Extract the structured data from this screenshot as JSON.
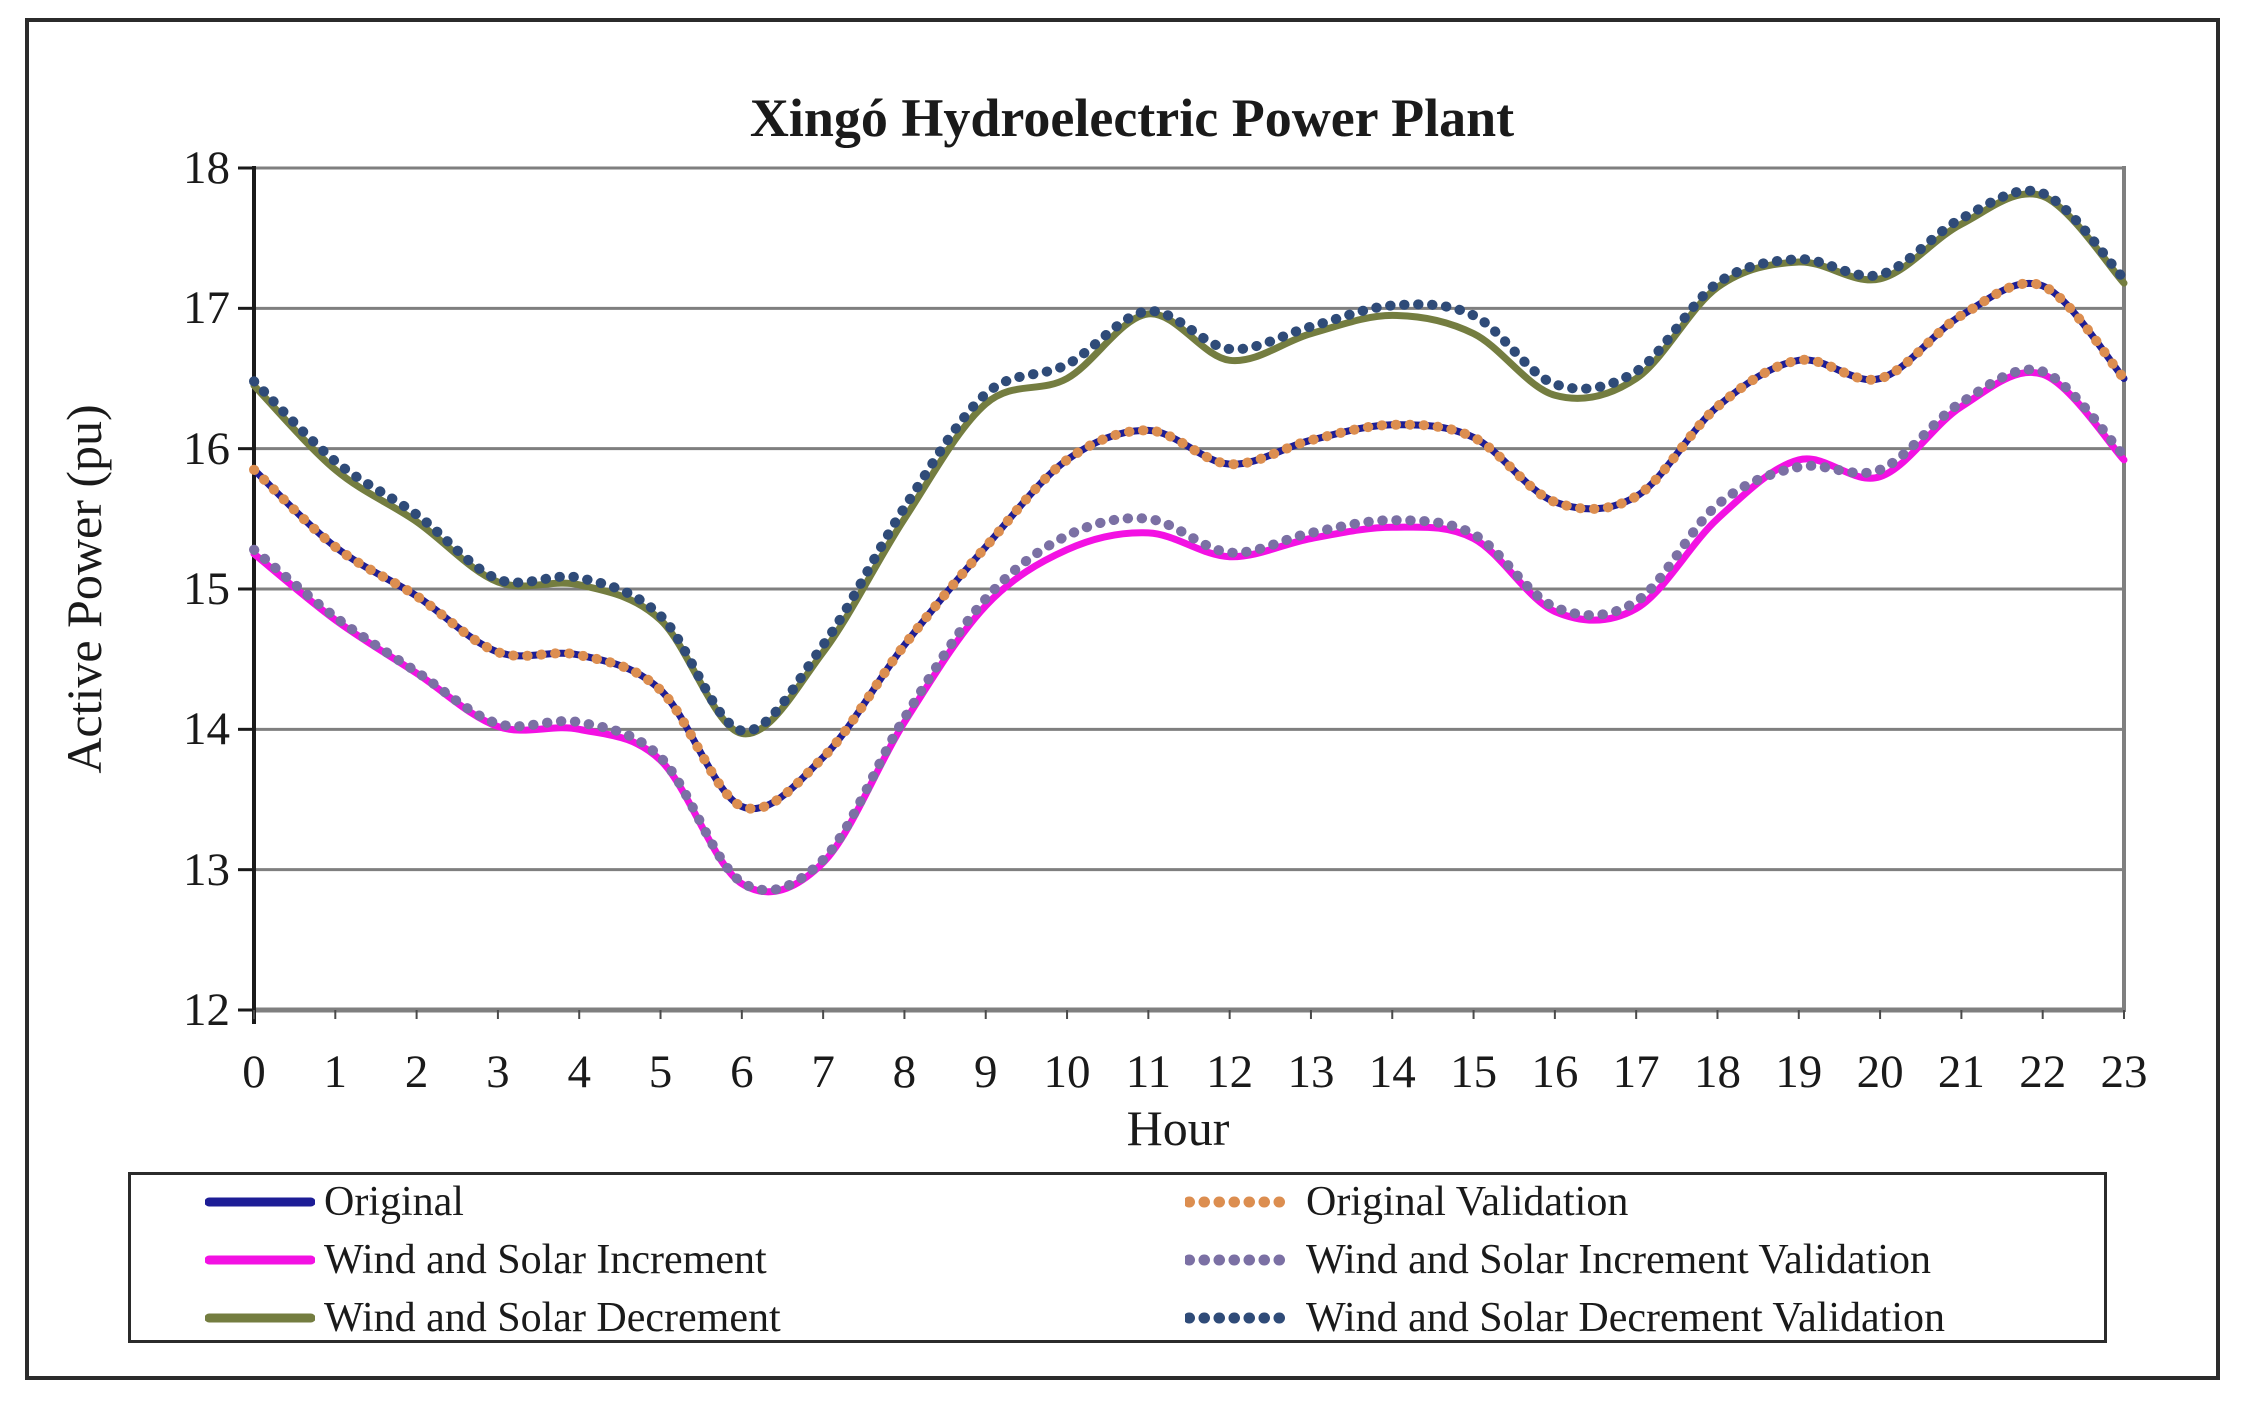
{
  "figure": {
    "background": "#ffffff",
    "border_color": "#2b2b2b"
  },
  "chart_data": {
    "type": "line",
    "title": "Xingó Hydroelectric Power Plant",
    "xlabel": "Hour",
    "ylabel": "Active Power (pu)",
    "x": [
      0,
      1,
      2,
      3,
      4,
      5,
      6,
      7,
      8,
      9,
      10,
      11,
      12,
      13,
      14,
      15,
      16,
      17,
      18,
      19,
      20,
      21,
      22,
      23
    ],
    "xlim": [
      0,
      23
    ],
    "ylim": [
      12,
      18
    ],
    "yticks": [
      12,
      13,
      14,
      15,
      16,
      17,
      18
    ],
    "grid": true,
    "gridline_color": "#7f7f7f",
    "axis_color": "#1a1a1a",
    "legend_position": "bottom",
    "series": [
      {
        "name": "Original",
        "style": "solid",
        "color": "#1d1d96",
        "values": [
          15.85,
          15.3,
          14.95,
          14.55,
          14.53,
          14.28,
          13.45,
          13.8,
          14.6,
          15.3,
          15.92,
          16.13,
          15.89,
          16.06,
          16.17,
          16.08,
          15.62,
          15.66,
          16.3,
          16.63,
          16.5,
          16.95,
          17.16,
          16.5
        ]
      },
      {
        "name": "Original Validation",
        "style": "dotted",
        "color": "#dc8e50",
        "values": [
          15.85,
          15.3,
          14.95,
          14.55,
          14.53,
          14.28,
          13.45,
          13.8,
          14.6,
          15.3,
          15.92,
          16.13,
          15.89,
          16.06,
          16.17,
          16.08,
          15.62,
          15.66,
          16.3,
          16.63,
          16.5,
          16.95,
          17.16,
          16.5
        ]
      },
      {
        "name": "Wind and Solar Increment",
        "style": "solid",
        "color": "#f311e3",
        "values": [
          15.25,
          14.78,
          14.4,
          14.02,
          14.0,
          13.78,
          12.9,
          13.05,
          14.05,
          14.88,
          15.28,
          15.4,
          15.23,
          15.36,
          15.44,
          15.36,
          14.84,
          14.86,
          15.5,
          15.92,
          15.8,
          16.3,
          16.53,
          15.92
        ]
      },
      {
        "name": "Wind and Solar Increment Validation",
        "style": "dotted",
        "color": "#7b70a4",
        "values": [
          15.28,
          14.8,
          14.41,
          14.04,
          14.05,
          13.8,
          12.91,
          13.07,
          14.08,
          14.93,
          15.38,
          15.5,
          15.26,
          15.4,
          15.49,
          15.39,
          14.87,
          14.91,
          15.6,
          15.87,
          15.85,
          16.33,
          16.55,
          15.95
        ]
      },
      {
        "name": "Wind and Solar Decrement",
        "style": "solid",
        "color": "#747d40",
        "values": [
          16.45,
          15.85,
          15.48,
          15.05,
          15.03,
          14.78,
          13.97,
          14.55,
          15.5,
          16.32,
          16.5,
          16.96,
          16.63,
          16.82,
          16.95,
          16.82,
          16.38,
          16.5,
          17.15,
          17.33,
          17.21,
          17.6,
          17.8,
          17.18
        ]
      },
      {
        "name": "Wind and Solar Decrement Validation",
        "style": "dotted",
        "color": "#2f4b78",
        "values": [
          16.48,
          15.91,
          15.53,
          15.07,
          15.08,
          14.81,
          13.99,
          14.6,
          15.58,
          16.39,
          16.6,
          16.98,
          16.71,
          16.87,
          17.02,
          16.95,
          16.46,
          16.55,
          17.18,
          17.35,
          17.24,
          17.64,
          17.82,
          17.21
        ]
      }
    ],
    "draw_order": [
      4,
      5,
      0,
      1,
      2,
      3
    ],
    "legend_rows": [
      [
        0,
        1
      ],
      [
        2,
        3
      ],
      [
        4,
        5
      ]
    ]
  }
}
